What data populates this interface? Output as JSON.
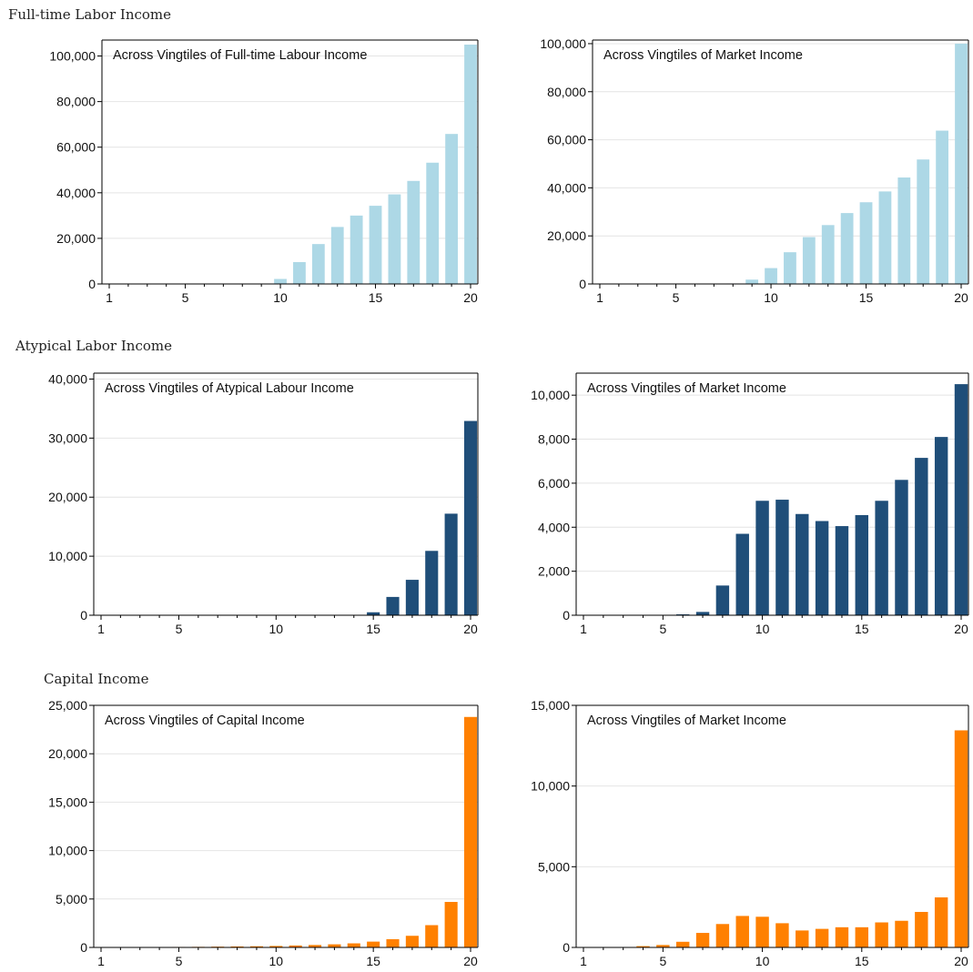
{
  "sections": [
    {
      "title": "Full-time Labor Income"
    },
    {
      "title": "Atypical Labor Income"
    },
    {
      "title": "Capital Income"
    }
  ],
  "colors": {
    "fulltime": "#add8e6",
    "atypical": "#1f4e79",
    "capital": "#ff8000",
    "grid": "#e4e4e4",
    "axis": "#000000"
  },
  "chart_data": [
    {
      "type": "bar",
      "title": "Across Vingtiles of Full-time Labour Income",
      "color": "#add8e6",
      "categories": [
        1,
        2,
        3,
        4,
        5,
        6,
        7,
        8,
        9,
        10,
        11,
        12,
        13,
        14,
        15,
        16,
        17,
        18,
        19,
        20
      ],
      "values": [
        0,
        0,
        0,
        0,
        0,
        0,
        0,
        0,
        0,
        2200,
        9600,
        17500,
        25000,
        30000,
        34300,
        39300,
        45200,
        53200,
        65800,
        105000
      ],
      "yticks": [
        0,
        20000,
        40000,
        60000,
        80000,
        100000
      ],
      "ytick_labels": [
        "0",
        "20,000",
        "40,000",
        "60,000",
        "80,000",
        "100,000"
      ],
      "xticks": [
        1,
        5,
        10,
        15,
        20
      ],
      "ylim": [
        0,
        107000
      ],
      "grid": true
    },
    {
      "type": "bar",
      "title": "Across Vingtiles of Market Income",
      "color": "#add8e6",
      "categories": [
        1,
        2,
        3,
        4,
        5,
        6,
        7,
        8,
        9,
        10,
        11,
        12,
        13,
        14,
        15,
        16,
        17,
        18,
        19,
        20
      ],
      "values": [
        0,
        0,
        0,
        0,
        0,
        0,
        0,
        200,
        1800,
        6600,
        13200,
        19500,
        24500,
        29500,
        34000,
        38500,
        44300,
        51800,
        63800,
        100000
      ],
      "yticks": [
        0,
        20000,
        40000,
        60000,
        80000,
        100000
      ],
      "ytick_labels": [
        "0",
        "20,000",
        "40,000",
        "60,000",
        "80,000",
        "100,000"
      ],
      "xticks": [
        1,
        5,
        10,
        15,
        20
      ],
      "ylim": [
        0,
        101500
      ],
      "grid": true
    },
    {
      "type": "bar",
      "title": "Across Vingtiles of Atypical Labour Income",
      "color": "#1f4e79",
      "categories": [
        1,
        2,
        3,
        4,
        5,
        6,
        7,
        8,
        9,
        10,
        11,
        12,
        13,
        14,
        15,
        16,
        17,
        18,
        19,
        20
      ],
      "values": [
        0,
        0,
        0,
        0,
        0,
        0,
        0,
        0,
        0,
        0,
        0,
        0,
        0,
        0,
        500,
        3100,
        6000,
        10900,
        17200,
        32900
      ],
      "yticks": [
        0,
        10000,
        20000,
        30000,
        40000
      ],
      "ytick_labels": [
        "0",
        "10,000",
        "20,000",
        "30,000",
        "40,000"
      ],
      "xticks": [
        1,
        5,
        10,
        15,
        20
      ],
      "ylim": [
        0,
        41000
      ],
      "grid": true
    },
    {
      "type": "bar",
      "title": "Across Vingtiles of Market Income",
      "color": "#1f4e79",
      "categories": [
        1,
        2,
        3,
        4,
        5,
        6,
        7,
        8,
        9,
        10,
        11,
        12,
        13,
        14,
        15,
        16,
        17,
        18,
        19,
        20
      ],
      "values": [
        0,
        0,
        0,
        0,
        20,
        40,
        150,
        1350,
        3700,
        5200,
        5250,
        4600,
        4280,
        4050,
        4550,
        5200,
        6150,
        7150,
        8100,
        10500
      ],
      "yticks": [
        0,
        2000,
        4000,
        6000,
        8000,
        10000
      ],
      "ytick_labels": [
        "0",
        "2,000",
        "4,000",
        "6,000",
        "8,000",
        "10,000"
      ],
      "xticks": [
        1,
        5,
        10,
        15,
        20
      ],
      "ylim": [
        0,
        11000
      ],
      "grid": true
    },
    {
      "type": "bar",
      "title": "Across Vingtiles of Capital Income",
      "color": "#ff8000",
      "categories": [
        1,
        2,
        3,
        4,
        5,
        6,
        7,
        8,
        9,
        10,
        11,
        12,
        13,
        14,
        15,
        16,
        17,
        18,
        19,
        20
      ],
      "values": [
        10,
        20,
        30,
        40,
        50,
        60,
        80,
        100,
        120,
        150,
        200,
        250,
        320,
        420,
        600,
        850,
        1200,
        2300,
        4700,
        23800
      ],
      "yticks": [
        0,
        5000,
        10000,
        15000,
        20000,
        25000
      ],
      "ytick_labels": [
        "0",
        "5,000",
        "10,000",
        "15,000",
        "20,000",
        "25,000"
      ],
      "xticks": [
        1,
        5,
        10,
        15,
        20
      ],
      "ylim": [
        0,
        25000
      ],
      "grid": true
    },
    {
      "type": "bar",
      "title": "Across Vingtiles of Market Income",
      "color": "#ff8000",
      "categories": [
        1,
        2,
        3,
        4,
        5,
        6,
        7,
        8,
        9,
        10,
        11,
        12,
        13,
        14,
        15,
        16,
        17,
        18,
        19,
        20
      ],
      "values": [
        0,
        0,
        20,
        80,
        150,
        350,
        900,
        1450,
        1950,
        1900,
        1500,
        1050,
        1150,
        1250,
        1250,
        1550,
        1650,
        2200,
        3100,
        13450
      ],
      "yticks": [
        0,
        5000,
        10000,
        15000
      ],
      "ytick_labels": [
        "0",
        "5,000",
        "10,000",
        "15,000"
      ],
      "xticks": [
        1,
        5,
        10,
        15,
        20
      ],
      "ylim": [
        0,
        15000
      ],
      "grid": true
    }
  ]
}
